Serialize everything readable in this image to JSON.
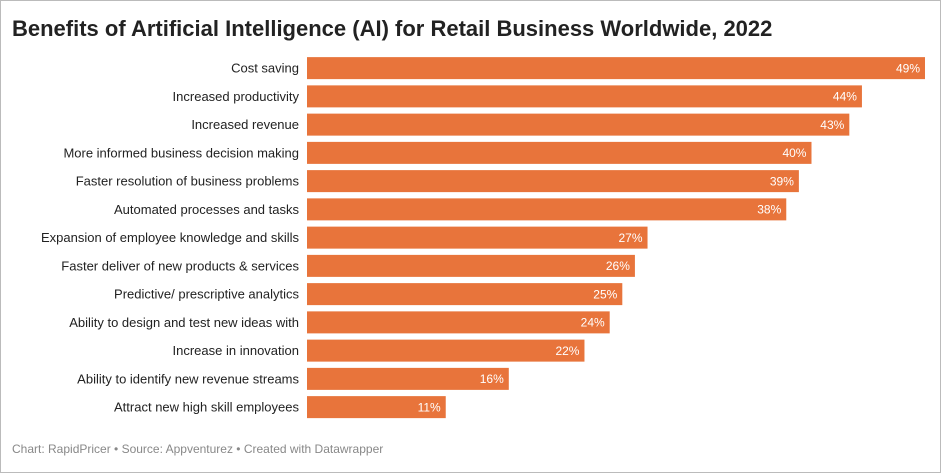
{
  "chart_data": {
    "type": "bar",
    "orientation": "horizontal",
    "title": "Benefits of Artificial Intelligence (AI) for Retail Business Worldwide, 2022",
    "footer": "Chart: RapidPricer • Source: Appventurez • Created with Datawrapper",
    "categories": [
      "Cost saving",
      "Increased productivity",
      "Increased revenue",
      "More informed business decision making",
      "Faster resolution of business problems",
      "Automated processes and tasks",
      "Expansion of employee knowledge and skills",
      "Faster deliver of new products & services",
      "Predictive/ prescriptive analytics",
      "Ability to design and test new ideas with",
      "Increase in innovation",
      "Ability to identify new revenue streams",
      "Attract new high skill employees"
    ],
    "values": [
      49,
      44,
      43,
      40,
      39,
      38,
      27,
      26,
      25,
      24,
      22,
      16,
      11
    ],
    "value_labels": [
      "49%",
      "44%",
      "43%",
      "40%",
      "39%",
      "38%",
      "27%",
      "26%",
      "25%",
      "24%",
      "22%",
      "16%",
      "11%"
    ],
    "color": "#e8743b",
    "xlim": [
      0,
      49
    ]
  }
}
